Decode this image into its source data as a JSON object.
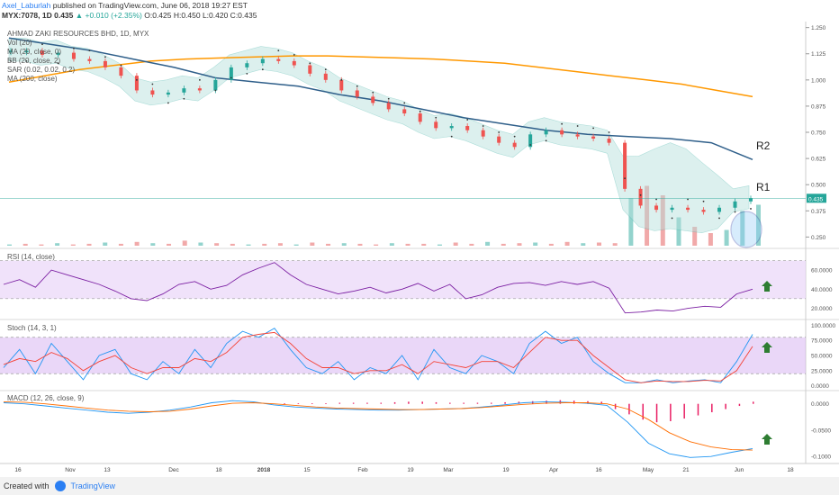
{
  "header": {
    "author": "Axel_Laburlah",
    "published": " published on TradingView.com, June 06, 2018 19:27 EST",
    "symbol_line_prefix": "MYX:7078, 1D  0.435 ",
    "change": "▲ +0.010 (+2.35%)",
    "ohlc": " O:0.425 H:0.450 L:0.420 C:0.435"
  },
  "legend": {
    "title": "AHMAD ZAKI RESOURCES BHD, 1D, MYX",
    "vol": "Vol (20)",
    "ma20": "MA (20, close, 0)",
    "bb": "BB (20, close, 2)",
    "sar": "SAR (0.02, 0.02, 0.2)",
    "ma200": "MA (200, close)"
  },
  "panes": {
    "rsi_label": "RSI (14, close)",
    "stoch_label": "Stoch (14, 3, 1)",
    "macd_label": "MACD (12, 26, close, 9)"
  },
  "annotations": {
    "r1": "R1",
    "r2": "R2"
  },
  "price_badge": "0.435",
  "footer": {
    "created": "Created with",
    "brand": "TradingView"
  },
  "colors": {
    "bull": "#26a69a",
    "bear": "#ef5350",
    "ma200": "#ff9800",
    "ma_blue": "#2f5f8a",
    "bb_fill": "#b2dfdb",
    "rsi_fill": "#e9d6f8",
    "rsi_line": "#7b1fa2",
    "stoch_k": "#2196f3",
    "stoch_d": "#f44336",
    "macd_hist": "#e91e63"
  },
  "chart_data": [
    {
      "type": "line",
      "title": "AHMAD ZAKI RESOURCES BHD, 1D, MYX",
      "x_ticks": [
        "16",
        "Nov",
        "13",
        "Dec",
        "18",
        "2018",
        "15",
        "Feb",
        "19",
        "Mar",
        "19",
        "Apr",
        "16",
        "May",
        "21",
        "Jun",
        "18"
      ],
      "y_ticks": [
        1.25,
        1.125,
        1.0,
        0.875,
        0.75,
        0.625,
        0.5,
        0.375,
        0.25
      ],
      "ylim": [
        0.2,
        1.27
      ],
      "series": [
        {
          "values": [
            1.14,
            1.14,
            1.12,
            1.13,
            1.1,
            1.09,
            1.06,
            1.02,
            0.95,
            0.93,
            0.94,
            0.96,
            0.95,
            1.0,
            1.06,
            1.08,
            1.1,
            1.09,
            1.07,
            1.03,
            1.0,
            0.95,
            0.92,
            0.89,
            0.86,
            0.84,
            0.8,
            0.77,
            0.78,
            0.76,
            0.73,
            0.7,
            0.68,
            0.74,
            0.76,
            0.74,
            0.73,
            0.72,
            0.7,
            0.48,
            0.4,
            0.38,
            0.39,
            0.38,
            0.37,
            0.39,
            0.42,
            0.435
          ]
        },
        {
          "name": "MA (200, close)",
          "values": [
            0.99,
            1.02,
            1.05,
            1.07,
            1.09,
            1.1,
            1.105,
            1.11,
            1.115,
            1.115,
            1.11,
            1.105,
            1.1,
            1.09,
            1.08,
            1.06,
            1.04,
            1.02,
            1.0,
            0.98,
            0.95,
            0.92
          ]
        },
        {
          "values": [
            1.2,
            1.17,
            1.14,
            1.1,
            1.06,
            1.01,
            0.99,
            0.97,
            0.93,
            0.9,
            0.86,
            0.82,
            0.79,
            0.76,
            0.74,
            0.73,
            0.72,
            0.7,
            0.62
          ]
        }
      ],
      "volume": [
        0.02,
        0.03,
        0.02,
        0.04,
        0.02,
        0.03,
        0.05,
        0.03,
        0.06,
        0.04,
        0.03,
        0.08,
        0.05,
        0.04,
        0.03,
        0.02,
        0.03,
        0.04,
        0.02,
        0.05,
        0.03,
        0.04,
        0.03,
        0.02,
        0.04,
        0.03,
        0.03,
        0.02,
        0.05,
        0.03,
        0.06,
        0.03,
        0.04,
        0.05,
        0.03,
        0.06,
        0.04,
        0.05,
        0.04,
        0.75,
        0.95,
        0.8,
        0.45,
        0.3,
        0.2,
        0.25,
        0.55,
        0.65
      ]
    },
    {
      "type": "line",
      "title": "RSI (14, close)",
      "y_ticks": [
        60,
        40,
        20
      ],
      "ylim": [
        10,
        80
      ],
      "series": [
        {
          "values": [
            45,
            50,
            42,
            60,
            55,
            50,
            45,
            38,
            30,
            28,
            35,
            45,
            48,
            40,
            44,
            55,
            62,
            68,
            55,
            45,
            40,
            35,
            38,
            42,
            36,
            40,
            46,
            38,
            45,
            30,
            34,
            42,
            46,
            47,
            44,
            48,
            45,
            48,
            41,
            15,
            16,
            18,
            17,
            20,
            22,
            21,
            35,
            40
          ]
        }
      ]
    },
    {
      "type": "line",
      "title": "Stoch (14, 3, 1)",
      "y_ticks": [
        100,
        75,
        50,
        25,
        0
      ],
      "ylim": [
        -5,
        105
      ],
      "series": [
        {
          "values": [
            30,
            60,
            20,
            70,
            40,
            10,
            50,
            60,
            20,
            10,
            40,
            20,
            60,
            30,
            70,
            90,
            80,
            95,
            60,
            30,
            20,
            40,
            10,
            30,
            20,
            50,
            10,
            60,
            30,
            20,
            50,
            40,
            20,
            70,
            90,
            70,
            80,
            40,
            20,
            5,
            5,
            10,
            5,
            8,
            10,
            5,
            40,
            85
          ]
        },
        {
          "values": [
            35,
            45,
            40,
            55,
            45,
            25,
            40,
            50,
            30,
            20,
            30,
            30,
            45,
            40,
            55,
            80,
            85,
            88,
            70,
            45,
            30,
            30,
            20,
            25,
            25,
            35,
            20,
            40,
            35,
            30,
            40,
            40,
            30,
            55,
            80,
            75,
            75,
            50,
            30,
            10,
            5,
            8,
            7,
            7,
            9,
            8,
            25,
            65
          ]
        }
      ]
    },
    {
      "type": "line",
      "title": "MACD (12, 26, close, 9)",
      "y_ticks": [
        0.0,
        -0.05,
        -0.1
      ],
      "ylim": [
        -0.11,
        0.02
      ],
      "series": [
        {
          "values": [
            0.002,
            0.0,
            -0.004,
            -0.008,
            -0.012,
            -0.016,
            -0.018,
            -0.016,
            -0.012,
            -0.006,
            0.002,
            0.006,
            0.004,
            -0.002,
            -0.006,
            -0.008,
            -0.01,
            -0.011,
            -0.012,
            -0.012,
            -0.011,
            -0.01,
            -0.009,
            -0.006,
            -0.002,
            0.002,
            0.004,
            0.003,
            0.001,
            -0.003,
            -0.035,
            -0.075,
            -0.095,
            -0.102,
            -0.1,
            -0.092,
            -0.085
          ]
        },
        {
          "values": [
            0.004,
            0.003,
            0.0,
            -0.004,
            -0.008,
            -0.012,
            -0.014,
            -0.015,
            -0.014,
            -0.01,
            -0.004,
            0.001,
            0.002,
            0.0,
            -0.003,
            -0.006,
            -0.008,
            -0.009,
            -0.01,
            -0.011,
            -0.011,
            -0.01,
            -0.009,
            -0.007,
            -0.004,
            -0.001,
            0.001,
            0.002,
            0.002,
            0.0,
            -0.01,
            -0.03,
            -0.055,
            -0.072,
            -0.082,
            -0.087,
            -0.088
          ]
        }
      ],
      "histogram": [
        0.0,
        0.001,
        0.001,
        0.001,
        0.001,
        0.002,
        0.002,
        0.002,
        0.002,
        0.003,
        0.004,
        0.004,
        0.003,
        0.002,
        0.002,
        0.002,
        0.002,
        0.003,
        0.004,
        0.005,
        0.006,
        0.007,
        0.006,
        0.005,
        0.004,
        -0.01,
        -0.02,
        -0.03,
        -0.035,
        -0.033,
        -0.028,
        -0.022,
        -0.016,
        -0.01,
        -0.004,
        0.004
      ]
    }
  ]
}
